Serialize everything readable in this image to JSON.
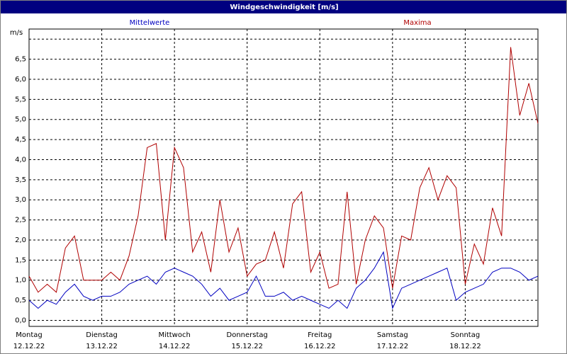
{
  "chart_data": {
    "type": "line",
    "title": "Windgeschwindigkeit [m/s]",
    "y_label": "m/s",
    "xlim": [
      0,
      7
    ],
    "xticks": [
      {
        "value": 0,
        "label": "Montag\n12.12.22"
      },
      {
        "value": 1,
        "label": "Dienstag\n13.12.22"
      },
      {
        "value": 2,
        "label": "Mittwoch\n14.12.22"
      },
      {
        "value": 3,
        "label": "Donnerstag\n15.12.22"
      },
      {
        "value": 4,
        "label": "Freitag\n16.12.22"
      },
      {
        "value": 5,
        "label": "Samstag\n17.12.22"
      },
      {
        "value": 6,
        "label": "Sonntag\n18.12.22"
      }
    ],
    "ylim": [
      -0.15,
      7.25
    ],
    "yticks": [
      {
        "value": 0,
        "label": "0,0"
      },
      {
        "value": 0.5,
        "label": "0,5"
      },
      {
        "value": 1,
        "label": "1,0"
      },
      {
        "value": 1.5,
        "label": "1,5"
      },
      {
        "value": 2,
        "label": "2,0"
      },
      {
        "value": 2.5,
        "label": "2,5"
      },
      {
        "value": 3,
        "label": "3,0"
      },
      {
        "value": 3.5,
        "label": "3,5"
      },
      {
        "value": 4,
        "label": "4,0"
      },
      {
        "value": 4.5,
        "label": "4,5"
      },
      {
        "value": 5,
        "label": "5,0"
      },
      {
        "value": 5.5,
        "label": "5,5"
      },
      {
        "value": 6,
        "label": "6,0"
      },
      {
        "value": 6.5,
        "label": "6,5"
      },
      {
        "value": 7,
        "label": null
      }
    ],
    "grid": true,
    "x": [
      0,
      0.125,
      0.25,
      0.375,
      0.5,
      0.625,
      0.75,
      0.875,
      1,
      1.125,
      1.25,
      1.375,
      1.5,
      1.625,
      1.75,
      1.875,
      2,
      2.125,
      2.25,
      2.375,
      2.5,
      2.625,
      2.75,
      2.875,
      3,
      3.125,
      3.25,
      3.375,
      3.5,
      3.625,
      3.75,
      3.875,
      4,
      4.125,
      4.25,
      4.375,
      4.5,
      4.625,
      4.75,
      4.875,
      5,
      5.125,
      5.25,
      5.375,
      5.5,
      5.625,
      5.75,
      5.875,
      6,
      6.125,
      6.25,
      6.375,
      6.5,
      6.625,
      6.75,
      6.875,
      7
    ],
    "series": [
      {
        "name": "Mittelwerte",
        "color": "#0000c0",
        "values": [
          0.5,
          0.3,
          0.5,
          0.4,
          0.7,
          0.9,
          0.6,
          0.5,
          0.6,
          0.6,
          0.7,
          0.9,
          1.0,
          1.1,
          0.9,
          1.2,
          1.3,
          1.2,
          1.1,
          0.9,
          0.6,
          0.8,
          0.5,
          0.6,
          0.7,
          1.1,
          0.6,
          0.6,
          0.7,
          0.5,
          0.6,
          0.5,
          0.4,
          0.3,
          0.5,
          0.3,
          0.8,
          1.0,
          1.3,
          1.7,
          0.3,
          0.8,
          0.9,
          1.0,
          1.1,
          1.2,
          1.3,
          0.5,
          0.7,
          0.8,
          0.9,
          1.2,
          1.3,
          1.3,
          1.2,
          1.0,
          1.1
        ]
      },
      {
        "name": "Maxima",
        "color": "#b00000",
        "values": [
          1.1,
          0.7,
          0.9,
          0.7,
          1.8,
          2.1,
          1.0,
          1.0,
          1.0,
          1.2,
          1.0,
          1.6,
          2.6,
          4.3,
          4.4,
          2.0,
          4.3,
          3.8,
          1.7,
          2.2,
          1.2,
          3.0,
          1.7,
          2.3,
          1.1,
          1.4,
          1.5,
          2.2,
          1.3,
          2.9,
          3.2,
          1.2,
          1.7,
          0.8,
          0.9,
          3.2,
          0.9,
          2.0,
          2.6,
          2.3,
          0.8,
          2.1,
          2.0,
          3.3,
          3.8,
          3.0,
          3.6,
          3.3,
          0.9,
          1.9,
          1.4,
          2.8,
          2.1,
          6.8,
          5.1,
          5.9,
          4.9
        ]
      }
    ]
  }
}
